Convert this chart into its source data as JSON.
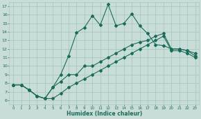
{
  "xlabel": "Humidex (Indice chaleur)",
  "xlim": [
    -0.5,
    23.5
  ],
  "ylim": [
    5.5,
    17.5
  ],
  "xticks": [
    0,
    1,
    2,
    3,
    4,
    5,
    6,
    7,
    8,
    9,
    10,
    11,
    12,
    13,
    14,
    15,
    16,
    17,
    18,
    19,
    20,
    21,
    22,
    23
  ],
  "yticks": [
    6,
    7,
    8,
    9,
    10,
    11,
    12,
    13,
    14,
    15,
    16,
    17
  ],
  "bg_color": "#c8ddd8",
  "line_color": "#1a6b5a",
  "grid_color": "#a8c8c0",
  "line_top_x": [
    0,
    1,
    2,
    3,
    4,
    5,
    6,
    7,
    8,
    9,
    10,
    11,
    12,
    13,
    14,
    15,
    16,
    17,
    18,
    19,
    20,
    21,
    22,
    23
  ],
  "line_top_y": [
    7.8,
    7.8,
    7.2,
    6.5,
    6.2,
    7.5,
    9.0,
    11.2,
    13.9,
    14.5,
    15.9,
    14.8,
    17.2,
    14.7,
    15.0,
    16.1,
    14.7,
    13.8,
    12.5,
    12.4,
    12.0,
    12.0,
    11.8,
    11.5
  ],
  "line_mid_x": [
    0,
    1,
    2,
    3,
    4,
    5,
    6,
    7,
    8,
    9,
    10,
    11,
    12,
    13,
    14,
    15,
    16,
    17,
    18,
    19,
    20,
    21,
    22,
    23
  ],
  "line_mid_y": [
    7.8,
    7.8,
    7.2,
    6.5,
    6.2,
    7.5,
    8.2,
    9.0,
    9.0,
    10.0,
    10.0,
    10.5,
    11.0,
    11.5,
    12.0,
    12.5,
    12.8,
    13.0,
    13.5,
    13.8,
    12.0,
    12.0,
    11.8,
    11.2
  ],
  "line_bot_x": [
    0,
    1,
    2,
    3,
    4,
    5,
    6,
    7,
    8,
    9,
    10,
    11,
    12,
    13,
    14,
    15,
    16,
    17,
    18,
    19,
    20,
    21,
    22,
    23
  ],
  "line_bot_y": [
    7.8,
    7.8,
    7.2,
    6.5,
    6.2,
    6.2,
    6.8,
    7.5,
    8.0,
    8.5,
    9.0,
    9.5,
    10.0,
    10.5,
    11.0,
    11.5,
    12.0,
    12.5,
    13.0,
    13.5,
    11.8,
    11.8,
    11.5,
    11.0
  ]
}
